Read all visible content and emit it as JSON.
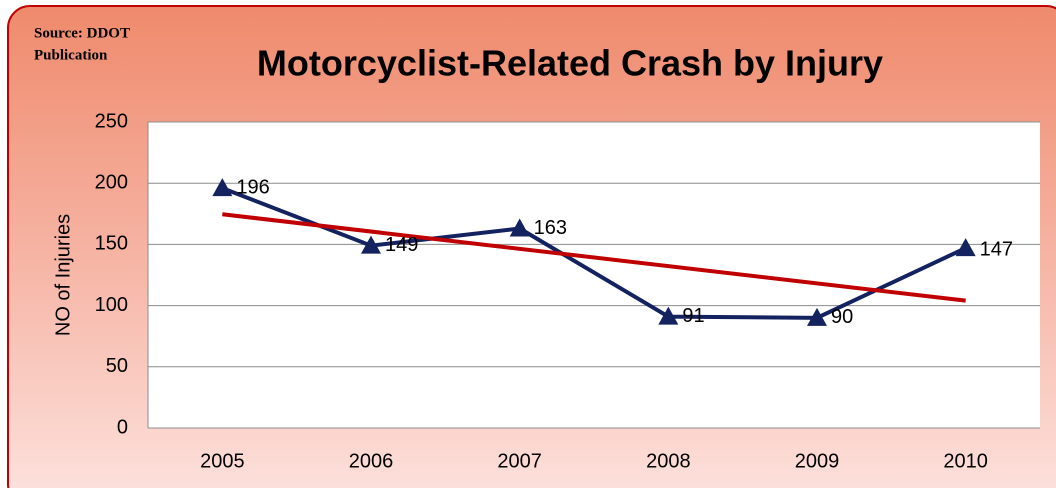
{
  "chart_data": {
    "type": "line",
    "title": "Motorcyclist-Related Crash by Injury",
    "source": [
      "Source: DDOT",
      "Publication"
    ],
    "y_label": "NO of Injuries",
    "categories": [
      "2005",
      "2006",
      "2007",
      "2008",
      "2009",
      "2010"
    ],
    "series": [
      {
        "name": "Injuries",
        "color": "#14225f",
        "values": [
          196,
          149,
          163,
          91,
          90,
          147
        ]
      }
    ],
    "trendline": {
      "type": "linear",
      "color": "#c00000"
    },
    "ylim": [
      0,
      250
    ],
    "yticks": [
      0,
      50,
      100,
      150,
      200,
      250
    ],
    "grid": true,
    "data_labels": true
  }
}
